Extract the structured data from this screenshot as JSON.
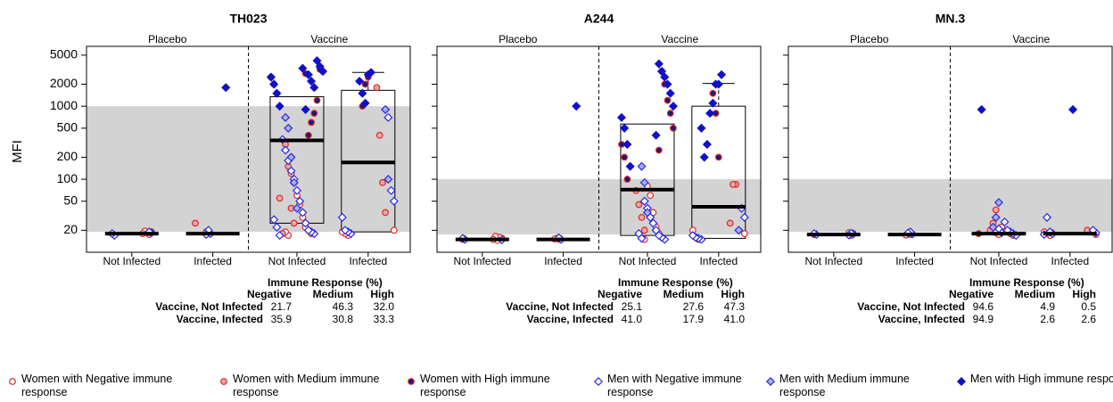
{
  "chart_data": [
    {
      "type": "box",
      "title": "TH023",
      "ylabel": "MFI",
      "group_labels": [
        "Placebo",
        "Vaccine"
      ],
      "categories": [
        "Not Infected",
        "Infected",
        "Not Infected",
        "Infected"
      ],
      "log_scale": true,
      "ylim": [
        10,
        6600
      ],
      "yticks": [
        20,
        50,
        100,
        200,
        500,
        1000,
        2000,
        5000
      ],
      "tick_labels": true,
      "band": [
        19,
        1000
      ],
      "boxes": [
        {
          "median": 18
        },
        {
          "median": 18
        },
        {
          "q1": 25,
          "median": 340,
          "q3": 1350
        },
        {
          "q1": 19,
          "median": 170,
          "q3": 1650,
          "whisker_high": 2900
        }
      ],
      "points": [
        [
          [
            18,
            19,
            17.5,
            18.5,
            19.5,
            18
          ],
          [
            18,
            19
          ],
          [
            18,
            20,
            22,
            30,
            45,
            60,
            90,
            120,
            17,
            19
          ],
          [
            17,
            18,
            19,
            20
          ]
        ],
        [
          [],
          [
            25
          ],
          [
            25,
            40,
            150,
            300,
            18,
            55
          ],
          [
            35,
            90,
            400,
            1800
          ]
        ],
        [
          [],
          [],
          [
            1500,
            2000,
            2500,
            3000,
            3200,
            1200,
            800,
            600,
            400,
            2800
          ],
          [
            2500,
            2000,
            1000
          ]
        ],
        [
          [
            17,
            18,
            18.5,
            19
          ],
          [
            18,
            20,
            17.5
          ],
          [
            18,
            19,
            20,
            25,
            35,
            50,
            70,
            100,
            130,
            180,
            250,
            350,
            17,
            22,
            28
          ],
          [
            18,
            19,
            20,
            30,
            50,
            70,
            700
          ]
        ],
        [
          [],
          [],
          [
            40,
            90,
            200,
            500,
            700
          ],
          [
            100,
            900
          ]
        ],
        [
          [],
          [
            1800
          ],
          [
            1000,
            1500,
            2000,
            2500,
            3000,
            3500,
            4200,
            1800,
            2200,
            2700,
            900,
            3300
          ],
          [
            2900,
            2700,
            1100,
            1500,
            2200
          ]
        ]
      ],
      "table": {
        "title": "Immune Response (%)",
        "columns": [
          "Negative",
          "Medium",
          "High"
        ],
        "rows": [
          {
            "label": "Vaccine, Not Infected",
            "cells": [
              "21.7",
              "46.3",
              "32.0"
            ]
          },
          {
            "label": "Vaccine, Infected",
            "cells": [
              "35.9",
              "30.8",
              "33.3"
            ]
          }
        ]
      }
    },
    {
      "type": "box",
      "title": "A244",
      "group_labels": [
        "Placebo",
        "Vaccine"
      ],
      "categories": [
        "Not Infected",
        "Infected",
        "Not Infected",
        "Infected"
      ],
      "log_scale": true,
      "ylim": [
        10,
        6600
      ],
      "yticks": [
        20,
        50,
        100,
        200,
        500,
        1000,
        2000,
        5000
      ],
      "tick_labels": false,
      "band": [
        17.5,
        100
      ],
      "boxes": [
        {
          "median": 15
        },
        {
          "median": 15
        },
        {
          "q1": 17,
          "median": 72,
          "q3": 570
        },
        {
          "q1": 15.5,
          "median": 42,
          "q3": 1000,
          "whisker_high": 2050
        }
      ],
      "points": [
        [
          [
            15,
            15.5,
            16,
            14.5,
            16.5,
            15
          ],
          [
            15,
            15.5,
            15.2
          ],
          [
            16,
            18,
            22,
            35,
            60,
            80,
            15
          ],
          [
            15,
            16,
            20,
            18
          ]
        ],
        [
          [],
          [],
          [
            20,
            30,
            45,
            70
          ],
          [
            85,
            85,
            25
          ]
        ],
        [
          [],
          [],
          [
            100,
            200,
            300,
            500,
            800,
            1200,
            2000,
            3000,
            250
          ],
          [
            200,
            800,
            1500
          ]
        ],
        [
          [
            15,
            15.5,
            14.8
          ],
          [
            15,
            15.8
          ],
          [
            15,
            16,
            17,
            20,
            25,
            30,
            40,
            50,
            15.5,
            18
          ],
          [
            15,
            15.5,
            16,
            17,
            30,
            40
          ]
        ],
        [
          [],
          [],
          [
            35,
            90,
            150
          ],
          [
            20
          ]
        ],
        [
          [],
          [
            1000
          ],
          [
            150,
            300,
            500,
            700,
            1000,
            1500,
            2000,
            2500,
            3000,
            3800,
            400
          ],
          [
            2700,
            2000,
            2000,
            1100,
            800,
            300,
            200,
            500
          ]
        ]
      ],
      "table": {
        "title": "Immune Response (%)",
        "columns": [
          "Negative",
          "Medium",
          "High"
        ],
        "rows": [
          {
            "label": "Vaccine, Not Infected",
            "cells": [
              "25.1",
              "27.6",
              "47.3"
            ]
          },
          {
            "label": "Vaccine, Infected",
            "cells": [
              "41.0",
              "17.9",
              "41.0"
            ]
          }
        ]
      }
    },
    {
      "type": "box",
      "title": "MN.3",
      "group_labels": [
        "Placebo",
        "Vaccine"
      ],
      "categories": [
        "Not Infected",
        "Infected",
        "Not Infected",
        "Infected"
      ],
      "log_scale": true,
      "ylim": [
        10,
        6600
      ],
      "yticks": [
        20,
        50,
        100,
        200,
        500,
        1000,
        2000,
        5000
      ],
      "tick_labels": false,
      "band": [
        19,
        100
      ],
      "boxes": [
        {
          "median": 17.5
        },
        {
          "median": 17.5
        },
        {
          "q1": 17.5,
          "median": 18,
          "q3": 18.5
        },
        {
          "q1": 17.5,
          "median": 18,
          "q3": 18.5
        }
      ],
      "points": [
        [
          [
            17.5,
            18,
            17,
            18.5
          ],
          [
            17.5,
            18,
            17.2
          ],
          [
            17,
            18,
            19,
            20,
            22,
            17.5,
            18.5
          ],
          [
            17,
            18,
            19,
            17.5
          ]
        ],
        [
          [],
          [],
          [
            38,
            25,
            20
          ],
          [
            20
          ]
        ],
        [
          [],
          [],
          [
            18
          ],
          []
        ],
        [
          [
            17.5,
            18,
            17.8,
            18.2,
            17.2
          ],
          [
            17.8,
            19,
            18.3
          ],
          [
            17,
            18,
            19,
            20,
            26,
            18.5,
            21
          ],
          [
            18,
            19,
            30,
            17.5,
            18.5,
            20
          ]
        ],
        [
          [],
          [],
          [
            48,
            30,
            22
          ],
          []
        ],
        [
          [],
          [],
          [
            900
          ],
          [
            900
          ]
        ]
      ],
      "table": {
        "title": "Immune Response (%)",
        "columns": [
          "Negative",
          "Medium",
          "High"
        ],
        "rows": [
          {
            "label": "Vaccine, Not Infected",
            "cells": [
              "94.6",
              "4.9",
              "0.5"
            ]
          },
          {
            "label": "Vaccine, Infected",
            "cells": [
              "94.9",
              "2.6",
              "2.6"
            ]
          }
        ]
      }
    }
  ],
  "legend": [
    {
      "name": "Women with Negative immune response",
      "marker": "circle",
      "stroke": "#e02828",
      "fill": "#ffffff"
    },
    {
      "name": "Women with Medium immune response",
      "marker": "circle",
      "stroke": "#e02828",
      "fill": "#e8a8a8"
    },
    {
      "name": "Women with High immune response",
      "marker": "circle",
      "stroke": "#e02828",
      "fill": "#1a1a78"
    },
    {
      "name": "Men with Negative immune response",
      "marker": "diamond",
      "stroke": "#2a2ae0",
      "fill": "#ffffff"
    },
    {
      "name": "Men with Medium immune response",
      "marker": "diamond",
      "stroke": "#2a2ae0",
      "fill": "#a8b0e8"
    },
    {
      "name": "Men with High immune response",
      "marker": "diamond",
      "stroke": "#1010c8",
      "fill": "#1010c8"
    }
  ]
}
